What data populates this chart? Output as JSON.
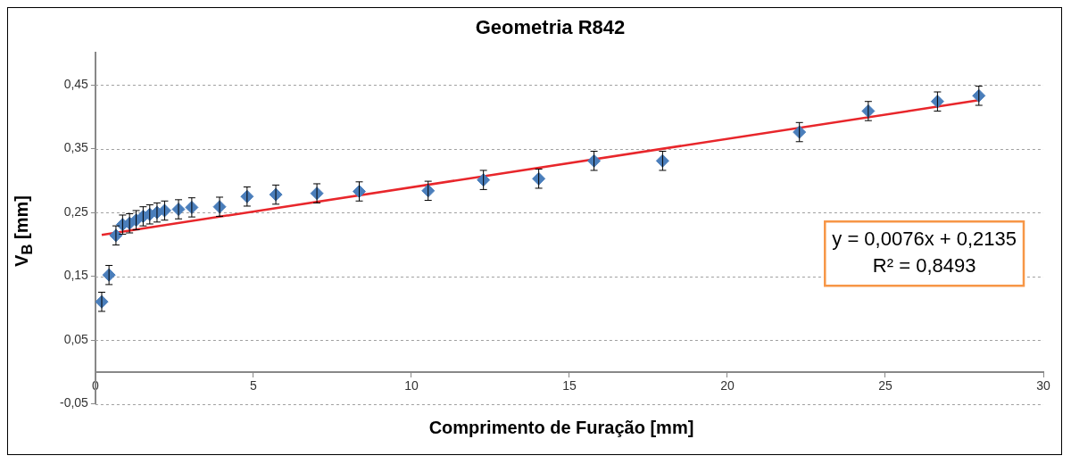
{
  "chart_data": {
    "type": "scatter",
    "title": "Geometria R842",
    "xlabel": "Comprimento de Furação [mm]",
    "ylabel": "V$_{B}$ [mm]",
    "series": [
      {
        "type": "scatter",
        "color": "#4a7ebb",
        "marker": "diamond",
        "x": [
          0.2,
          0.43,
          0.65,
          0.86,
          1.08,
          1.29,
          1.51,
          1.72,
          1.95,
          2.19,
          2.63,
          3.05,
          3.93,
          4.8,
          5.71,
          7.01,
          8.35,
          10.53,
          12.28,
          14.03,
          15.78,
          17.95,
          22.28,
          24.46,
          26.65,
          27.96
        ],
        "values": [
          0.11,
          0.152,
          0.214,
          0.231,
          0.233,
          0.238,
          0.244,
          0.247,
          0.25,
          0.253,
          0.255,
          0.258,
          0.259,
          0.275,
          0.278,
          0.28,
          0.283,
          0.284,
          0.301,
          0.303,
          0.331,
          0.331,
          0.376,
          0.409,
          0.424,
          0.433
        ],
        "errors": [
          0.015,
          0.015,
          0.015,
          0.015,
          0.015,
          0.015,
          0.015,
          0.015,
          0.015,
          0.015,
          0.015,
          0.015,
          0.015,
          0.015,
          0.015,
          0.015,
          0.015,
          0.015,
          0.015,
          0.015,
          0.015,
          0.015,
          0.015,
          0.015,
          0.015,
          0.015
        ]
      },
      {
        "type": "line",
        "color": "#e8262b",
        "marker": "none",
        "x": [
          0.2,
          27.96
        ],
        "values": [
          0.215,
          0.426
        ]
      }
    ],
    "xlim": [
      0,
      30
    ],
    "xticks": [
      0,
      5,
      10,
      15,
      20,
      25,
      30
    ],
    "ylim": [
      -0.05,
      0.5
    ],
    "yticks": [
      {
        "value": -0.05,
        "label": "-0,05"
      },
      {
        "value": 0.05,
        "label": "0,05"
      },
      {
        "value": 0.15,
        "label": "0,15"
      },
      {
        "value": 0.25,
        "label": "0,25"
      },
      {
        "value": 0.35,
        "label": "0,35"
      },
      {
        "value": 0.45,
        "label": "0,45"
      }
    ],
    "grid": "y",
    "annotations": [
      "y = 0,0076x + 0,2135\nR² = 0,8493"
    ]
  }
}
